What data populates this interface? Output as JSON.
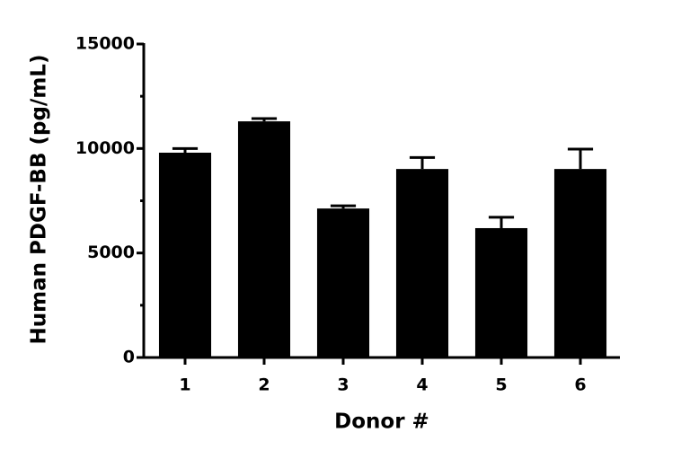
{
  "chart_data": {
    "type": "bar",
    "categories": [
      "1",
      "2",
      "3",
      "4",
      "5",
      "6"
    ],
    "values": [
      9800,
      11300,
      7130,
      9020,
      6190,
      9020
    ],
    "errors": [
      200,
      130,
      130,
      550,
      520,
      950
    ],
    "color": "#000000",
    "xlabel": "Donor #",
    "ylabel": "Human PDGF-BB (pg/mL)",
    "ylim": [
      0,
      15000
    ],
    "yticks": [
      0,
      5000,
      10000,
      15000
    ],
    "grid": false
  }
}
